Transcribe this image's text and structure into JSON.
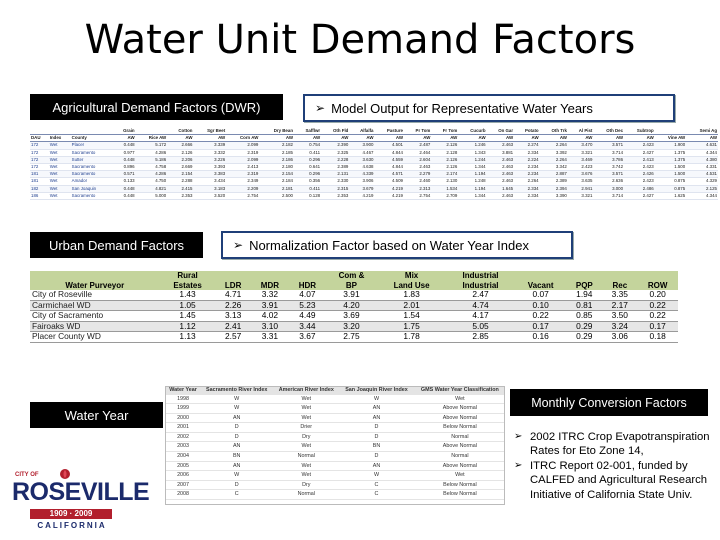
{
  "title": "Water Unit Demand Factors",
  "labels": {
    "agricultural": "Agricultural Demand Factors (DWR)",
    "model_output": "Model Output for Representative Water Years",
    "urban": "Urban Demand Factors",
    "normalization": "Normalization Factor based on Water Year Index",
    "water_year": "Water Year",
    "monthly": "Monthly Conversion Factors"
  },
  "bullets": [
    "2002 ITRC Crop Evapotranspiration Rates for Eto Zone 14,",
    "ITRC Report 02-001, funded by CALFED and Agricultural Research Initiative of  California State Univ."
  ],
  "ag_table": {
    "header_top": [
      "",
      "",
      "",
      "Grain",
      "",
      "Cotton",
      "Sgr Beet",
      "",
      "Dry Bean",
      "Safflwr",
      "Oth Fld",
      "Alfalfa",
      "Pasture",
      "Pr Tom",
      "Fr Tom",
      "Cucurb",
      "On Gar",
      "Potato",
      "Oth Trk",
      "Al Pist",
      "Oth Dec",
      "Subtrop",
      "",
      "Semi Ag"
    ],
    "header_bottom": [
      "DAU",
      "Index",
      "County",
      "AW",
      "Rice AW",
      "AW",
      "AW",
      "Corn AW",
      "AW",
      "AW",
      "AW",
      "AW",
      "AW",
      "AW",
      "AW",
      "AW",
      "AW",
      "AW",
      "AW",
      "AW",
      "AW",
      "AW",
      "Vine AW",
      "AW"
    ],
    "rows": [
      [
        "172",
        "Wet",
        "Placer",
        "0.448",
        "5.172",
        "2.666",
        "3.339",
        "2.099",
        "2.182",
        "0.754",
        "2.390",
        "3.900",
        "4.501",
        "2.487",
        "2.126",
        "1.246",
        "2.463",
        "2.274",
        "2.264",
        "3.470",
        "3.571",
        "2.423",
        "1.900",
        "4.631"
      ],
      [
        "172",
        "Wet",
        "Sacramento",
        "0.977",
        "4.286",
        "2.126",
        "3.332",
        "2.319",
        "2.185",
        "0.411",
        "2.325",
        "4.467",
        "4.844",
        "2.464",
        "2.128",
        "1.343",
        "3.881",
        "2.334",
        "3.392",
        "3.321",
        "3.714",
        "2.427",
        "1.375",
        "4.344"
      ],
      [
        "172",
        "Wet",
        "Sutter",
        "0.448",
        "5.186",
        "2.206",
        "3.226",
        "2.099",
        "2.186",
        "0.296",
        "2.228",
        "3.630",
        "4.559",
        "2.604",
        "2.126",
        "1.244",
        "2.463",
        "2.224",
        "2.264",
        "3.469",
        "3.786",
        "2.413",
        "1.375",
        "4.380"
      ],
      [
        "172",
        "Wet",
        "Sacramento",
        "0.896",
        "4.758",
        "2.669",
        "3.393",
        "2.413",
        "2.180",
        "0.641",
        "2.389",
        "4.638",
        "4.844",
        "2.463",
        "2.126",
        "1.344",
        "2.463",
        "2.234",
        "3.342",
        "2.423",
        "3.742",
        "2.423",
        "1.500",
        "4.331"
      ],
      [
        "181",
        "Wet",
        "Sacramento",
        "0.571",
        "4.286",
        "2.154",
        "3.383",
        "2.319",
        "2.154",
        "0.296",
        "2.131",
        "4.339",
        "4.571",
        "2.279",
        "2.174",
        "1.194",
        "2.463",
        "2.234",
        "2.887",
        "3.676",
        "3.571",
        "2.426",
        "1.500",
        "4.531"
      ],
      [
        "181",
        "Wet",
        "Amador",
        "0.133",
        "4.750",
        "2.288",
        "3.434",
        "2.349",
        "2.184",
        "0.356",
        "2.330",
        "3.906",
        "4.509",
        "2.460",
        "2.130",
        "1.248",
        "2.463",
        "2.264",
        "2.389",
        "3.635",
        "2.636",
        "2.423",
        "0.875",
        "4.329"
      ],
      [
        "182",
        "Wet",
        "San Joaquin",
        "0.448",
        "4.821",
        "2.415",
        "3.183",
        "2.209",
        "2.181",
        "0.411",
        "2.315",
        "3.679",
        "4.219",
        "2.313",
        "1.534",
        "1.194",
        "1.645",
        "2.334",
        "2.394",
        "2.941",
        "3.000",
        "2.486",
        "0.875",
        "2.125"
      ],
      [
        "186",
        "Wet",
        "Sacramento",
        "0.448",
        "5.000",
        "2.353",
        "3.520",
        "2.754",
        "2.500",
        "0.128",
        "2.353",
        "4.219",
        "4.219",
        "2.754",
        "2.709",
        "1.344",
        "2.463",
        "2.334",
        "3.390",
        "3.321",
        "3.714",
        "2.427",
        "1.625",
        "4.344"
      ]
    ]
  },
  "urban_table": {
    "header_top": [
      "",
      "Rural",
      "",
      "",
      "",
      "Com &",
      "Mix",
      "Industrial",
      "",
      "",
      ""
    ],
    "header_bottom": [
      "Water Purveyor",
      "Estates",
      "LDR",
      "MDR",
      "HDR",
      "BP",
      "Land Use",
      "Industrial",
      "Vacant",
      "PQP",
      "Rec",
      "ROW"
    ],
    "rows": [
      [
        "City of Roseville",
        "1.43",
        "4.71",
        "3.32",
        "4.07",
        "3.91",
        "1.83",
        "2.47",
        "0.07",
        "1.94",
        "3.35",
        "0.20"
      ],
      [
        "Carmichael WD",
        "1.05",
        "2.26",
        "3.91",
        "5.23",
        "4.20",
        "2.01",
        "4.74",
        "0.10",
        "0.81",
        "2.17",
        "0.22"
      ],
      [
        "City of Sacramento",
        "1.45",
        "3.13",
        "4.02",
        "4.49",
        "3.69",
        "1.54",
        "4.17",
        "0.22",
        "0.85",
        "3.50",
        "0.22"
      ],
      [
        "Fairoaks WD",
        "1.12",
        "2.41",
        "3.10",
        "3.44",
        "3.20",
        "1.75",
        "5.05",
        "0.17",
        "0.29",
        "3.24",
        "0.17"
      ],
      [
        "Placer County WD",
        "1.13",
        "2.57",
        "3.31",
        "3.67",
        "2.75",
        "1.78",
        "2.85",
        "0.16",
        "0.29",
        "3.06",
        "0.18"
      ]
    ]
  },
  "wy_table": {
    "headers": [
      "Water Year",
      "Sacramento River Index",
      "American River Index",
      "San Joaquin River Index",
      "GMS Water Year Classification"
    ],
    "rows": [
      [
        "1998",
        "W",
        "Wet",
        "W",
        "Wet"
      ],
      [
        "1999",
        "W",
        "Wet",
        "AN",
        "Above Normal"
      ],
      [
        "2000",
        "AN",
        "Wet",
        "AN",
        "Above Normal"
      ],
      [
        "2001",
        "D",
        "Drier",
        "D",
        "Below Normal"
      ],
      [
        "2002",
        "D",
        "Dry",
        "D",
        "Normal"
      ],
      [
        "2003",
        "AN",
        "Wet",
        "BN",
        "Above Normal"
      ],
      [
        "2004",
        "BN",
        "Normal",
        "D",
        "Normal"
      ],
      [
        "2005",
        "AN",
        "Wet",
        "AN",
        "Above Normal"
      ],
      [
        "2006",
        "W",
        "Wet",
        "W",
        "Wet"
      ],
      [
        "2007",
        "D",
        "Dry",
        "C",
        "Below Normal"
      ],
      [
        "2008",
        "C",
        "Normal",
        "C",
        "Below Normal"
      ]
    ]
  },
  "logo": {
    "city_of": "CITY OF",
    "name": "ROSEVILLE",
    "years": "1909 · 2009",
    "state": "CALIFORNIA"
  },
  "colors": {
    "box_border": "#1f3f78",
    "urban_header": "#c4d49c",
    "logo_red": "#b21f2d",
    "logo_blue": "#1b2a6b"
  }
}
